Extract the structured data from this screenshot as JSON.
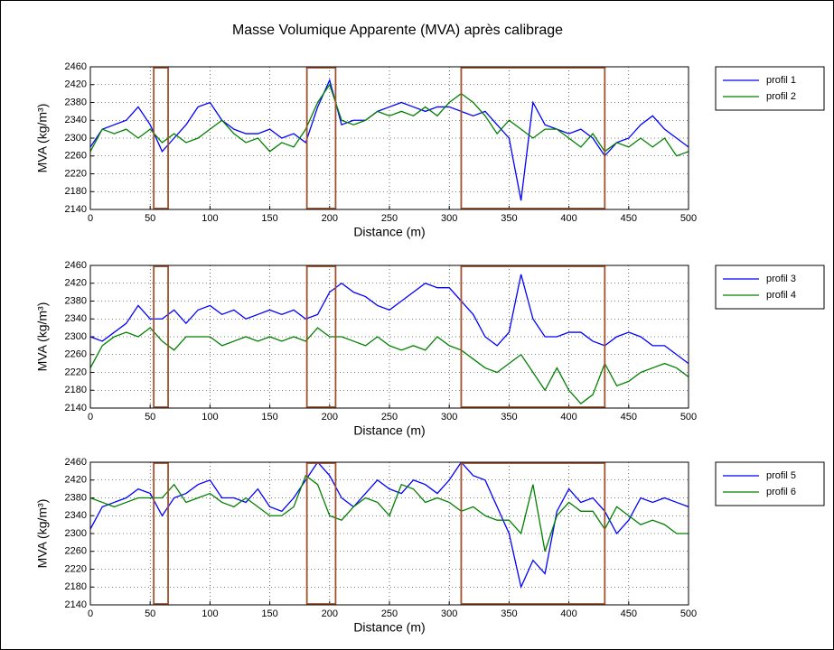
{
  "title": "Masse Volumique Apparente (MVA) après calibrage",
  "chart_data": [
    {
      "type": "line",
      "xlabel": "Distance (m)",
      "ylabel": "MVA (kg/m³)",
      "x": [
        0,
        10,
        20,
        30,
        40,
        50,
        60,
        70,
        80,
        90,
        100,
        110,
        120,
        130,
        140,
        150,
        160,
        170,
        180,
        190,
        200,
        210,
        220,
        230,
        240,
        250,
        260,
        270,
        280,
        290,
        300,
        310,
        320,
        330,
        340,
        350,
        360,
        370,
        380,
        390,
        400,
        410,
        420,
        430,
        440,
        450,
        460,
        470,
        480,
        490,
        500
      ],
      "series": [
        {
          "name": "profil 1",
          "color": "#0000ff",
          "values": [
            2280,
            2320,
            2330,
            2340,
            2370,
            2330,
            2270,
            2300,
            2330,
            2370,
            2380,
            2340,
            2320,
            2310,
            2310,
            2320,
            2300,
            2310,
            2290,
            2370,
            2430,
            2330,
            2340,
            2340,
            2360,
            2370,
            2380,
            2370,
            2360,
            2370,
            2370,
            2360,
            2350,
            2360,
            2330,
            2300,
            2160,
            2380,
            2330,
            2320,
            2310,
            2320,
            2300,
            2260,
            2290,
            2300,
            2330,
            2350,
            2320,
            2300,
            2280
          ]
        },
        {
          "name": "profil 2",
          "color": "#008000",
          "values": [
            2270,
            2320,
            2310,
            2320,
            2300,
            2320,
            2290,
            2310,
            2290,
            2300,
            2320,
            2340,
            2310,
            2290,
            2300,
            2270,
            2290,
            2280,
            2320,
            2380,
            2420,
            2340,
            2330,
            2340,
            2360,
            2350,
            2360,
            2350,
            2370,
            2350,
            2380,
            2400,
            2380,
            2350,
            2310,
            2340,
            2320,
            2300,
            2320,
            2320,
            2300,
            2280,
            2310,
            2270,
            2290,
            2280,
            2300,
            2280,
            2300,
            2260,
            2270
          ]
        }
      ],
      "regions": [
        [
          53,
          65
        ],
        [
          181,
          205
        ],
        [
          310,
          430
        ]
      ],
      "region_color": "#a0522d",
      "xlim": [
        0,
        500
      ],
      "xticks": [
        0,
        50,
        100,
        150,
        200,
        250,
        300,
        350,
        400,
        450,
        500
      ],
      "ylim": [
        2140,
        2460
      ],
      "yticks": [
        2140,
        2180,
        2220,
        2260,
        2300,
        2340,
        2380,
        2420,
        2460
      ],
      "grid": true,
      "legend": "outside right"
    },
    {
      "type": "line",
      "xlabel": "Distance (m)",
      "ylabel": "MVA (kg/m³)",
      "x": [
        0,
        10,
        20,
        30,
        40,
        50,
        60,
        70,
        80,
        90,
        100,
        110,
        120,
        130,
        140,
        150,
        160,
        170,
        180,
        190,
        200,
        210,
        220,
        230,
        240,
        250,
        260,
        270,
        280,
        290,
        300,
        310,
        320,
        330,
        340,
        350,
        360,
        370,
        380,
        390,
        400,
        410,
        420,
        430,
        440,
        450,
        460,
        470,
        480,
        490,
        500
      ],
      "series": [
        {
          "name": "profil 3",
          "color": "#0000ff",
          "values": [
            2300,
            2290,
            2310,
            2330,
            2370,
            2340,
            2340,
            2360,
            2330,
            2360,
            2370,
            2350,
            2360,
            2340,
            2350,
            2360,
            2350,
            2360,
            2340,
            2350,
            2400,
            2420,
            2400,
            2390,
            2370,
            2360,
            2380,
            2400,
            2420,
            2410,
            2410,
            2380,
            2350,
            2300,
            2280,
            2310,
            2440,
            2340,
            2300,
            2300,
            2310,
            2310,
            2290,
            2280,
            2300,
            2310,
            2300,
            2280,
            2280,
            2260,
            2240
          ]
        },
        {
          "name": "profil 4",
          "color": "#008000",
          "values": [
            2230,
            2280,
            2300,
            2310,
            2300,
            2320,
            2290,
            2270,
            2300,
            2300,
            2300,
            2280,
            2290,
            2300,
            2290,
            2300,
            2290,
            2300,
            2290,
            2320,
            2300,
            2300,
            2290,
            2280,
            2300,
            2280,
            2270,
            2280,
            2270,
            2300,
            2280,
            2270,
            2250,
            2230,
            2220,
            2240,
            2260,
            2220,
            2180,
            2230,
            2180,
            2150,
            2170,
            2240,
            2190,
            2200,
            2220,
            2230,
            2240,
            2230,
            2210
          ]
        }
      ],
      "regions": [
        [
          53,
          65
        ],
        [
          181,
          205
        ],
        [
          310,
          430
        ]
      ],
      "region_color": "#a0522d",
      "xlim": [
        0,
        500
      ],
      "xticks": [
        0,
        50,
        100,
        150,
        200,
        250,
        300,
        350,
        400,
        450,
        500
      ],
      "ylim": [
        2140,
        2460
      ],
      "yticks": [
        2140,
        2180,
        2220,
        2260,
        2300,
        2340,
        2380,
        2420,
        2460
      ],
      "grid": true,
      "legend": "outside right"
    },
    {
      "type": "line",
      "xlabel": "Distance (m)",
      "ylabel": "MVA (kg/m³)",
      "x": [
        0,
        10,
        20,
        30,
        40,
        50,
        60,
        70,
        80,
        90,
        100,
        110,
        120,
        130,
        140,
        150,
        160,
        170,
        180,
        190,
        200,
        210,
        220,
        230,
        240,
        250,
        260,
        270,
        280,
        290,
        300,
        310,
        320,
        330,
        340,
        350,
        360,
        370,
        380,
        390,
        400,
        410,
        420,
        430,
        440,
        450,
        460,
        470,
        480,
        490,
        500
      ],
      "series": [
        {
          "name": "profil 5",
          "color": "#0000ff",
          "values": [
            2310,
            2360,
            2370,
            2380,
            2400,
            2390,
            2340,
            2380,
            2390,
            2410,
            2420,
            2380,
            2380,
            2370,
            2400,
            2360,
            2350,
            2380,
            2420,
            2460,
            2430,
            2380,
            2360,
            2390,
            2420,
            2400,
            2390,
            2420,
            2410,
            2390,
            2420,
            2460,
            2430,
            2420,
            2360,
            2300,
            2180,
            2240,
            2210,
            2350,
            2400,
            2370,
            2380,
            2350,
            2300,
            2330,
            2380,
            2370,
            2380,
            2370,
            2360
          ]
        },
        {
          "name": "profil 6",
          "color": "#008000",
          "values": [
            2380,
            2370,
            2360,
            2370,
            2380,
            2380,
            2380,
            2410,
            2370,
            2380,
            2390,
            2370,
            2360,
            2380,
            2360,
            2340,
            2340,
            2360,
            2430,
            2410,
            2340,
            2330,
            2360,
            2380,
            2370,
            2340,
            2410,
            2400,
            2370,
            2380,
            2370,
            2350,
            2360,
            2340,
            2330,
            2330,
            2300,
            2410,
            2260,
            2340,
            2370,
            2350,
            2350,
            2310,
            2360,
            2340,
            2320,
            2330,
            2320,
            2300,
            2300
          ]
        }
      ],
      "regions": [
        [
          53,
          65
        ],
        [
          181,
          205
        ],
        [
          310,
          430
        ]
      ],
      "region_color": "#a0522d",
      "xlim": [
        0,
        500
      ],
      "xticks": [
        0,
        50,
        100,
        150,
        200,
        250,
        300,
        350,
        400,
        450,
        500
      ],
      "ylim": [
        2140,
        2460
      ],
      "yticks": [
        2140,
        2180,
        2220,
        2260,
        2300,
        2340,
        2380,
        2420,
        2460
      ],
      "grid": true,
      "legend": "outside right"
    }
  ]
}
